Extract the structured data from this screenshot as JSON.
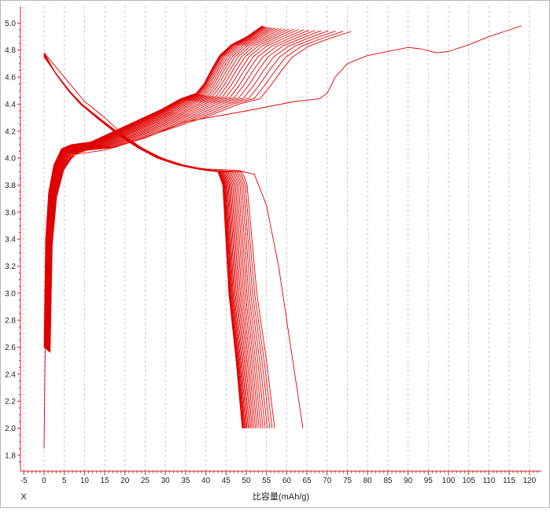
{
  "chart_data": {
    "type": "line",
    "xlabel": "比容量(mAh/g)",
    "corner_label": "X",
    "ylabel": "",
    "xlim": [
      -5,
      122
    ],
    "ylim": [
      1.7,
      5.05
    ],
    "xticks": [
      -5,
      0,
      5,
      10,
      15,
      20,
      25,
      30,
      35,
      40,
      45,
      50,
      55,
      60,
      65,
      70,
      75,
      80,
      85,
      90,
      95,
      100,
      105,
      110,
      115,
      120
    ],
    "yticks": [
      "1.8",
      "2.0",
      "2.2",
      "2.4",
      "2.6",
      "2.8",
      "3.0",
      "3.2",
      "3.4",
      "3.6",
      "3.8",
      "4.0",
      "4.2",
      "4.4",
      "4.6",
      "4.8",
      "5.0"
    ],
    "grid": {
      "vertical": "dashed",
      "horizontal": false
    },
    "line_color": "#e00000",
    "first_charge": {
      "points": [
        [
          0,
          1.85
        ],
        [
          0.5,
          3.2
        ],
        [
          2,
          3.7
        ],
        [
          5,
          3.95
        ],
        [
          8,
          4.03
        ],
        [
          15,
          4.06
        ],
        [
          25,
          4.15
        ],
        [
          35,
          4.27
        ],
        [
          50,
          4.35
        ],
        [
          62,
          4.42
        ],
        [
          68,
          4.44
        ],
        [
          70,
          4.48
        ],
        [
          72,
          4.6
        ],
        [
          75,
          4.7
        ],
        [
          80,
          4.76
        ],
        [
          90,
          4.82
        ],
        [
          93,
          4.81
        ],
        [
          97,
          4.78
        ],
        [
          100,
          4.79
        ],
        [
          105,
          4.84
        ],
        [
          110,
          4.9
        ],
        [
          115,
          4.95
        ],
        [
          118,
          4.98
        ]
      ]
    },
    "first_discharge": {
      "points": [
        [
          0,
          4.78
        ],
        [
          5,
          4.6
        ],
        [
          10,
          4.42
        ],
        [
          15,
          4.3
        ],
        [
          20,
          4.16
        ],
        [
          25,
          4.06
        ],
        [
          30,
          3.99
        ],
        [
          35,
          3.94
        ],
        [
          40,
          3.92
        ],
        [
          48,
          3.91
        ],
        [
          52,
          3.88
        ],
        [
          55,
          3.65
        ],
        [
          58,
          3.2
        ],
        [
          61,
          2.6
        ],
        [
          64,
          2.0
        ]
      ]
    },
    "charge_curves": {
      "count": 24,
      "start_capacity_range": [
        0,
        1.5
      ],
      "end_capacity_range": [
        54,
        74
      ],
      "end_voltage_range": [
        4.95,
        4.98
      ],
      "knee_points": [
        [
          5,
          4.1
        ],
        [
          20,
          4.24
        ],
        [
          35,
          4.42
        ],
        [
          40,
          4.52
        ],
        [
          42,
          4.62
        ],
        [
          45,
          4.8
        ]
      ]
    },
    "discharge_curves": {
      "count": 24,
      "start_voltage_range": [
        4.75,
        4.78
      ],
      "plateau_voltage": 3.9,
      "plateau_end_range": [
        43,
        49
      ],
      "end_capacity_range": [
        49,
        57
      ],
      "end_voltage": 2.0
    }
  }
}
